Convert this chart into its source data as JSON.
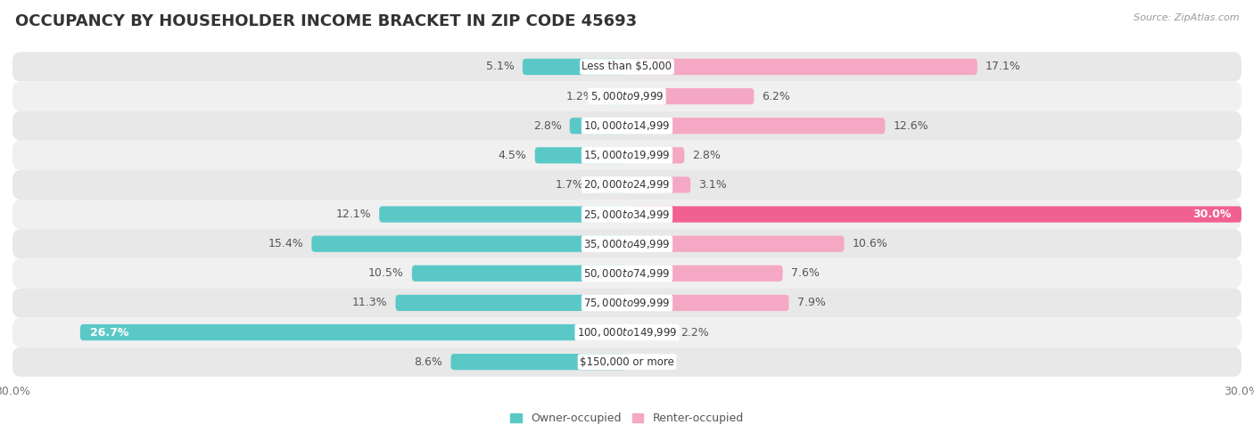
{
  "title": "OCCUPANCY BY HOUSEHOLDER INCOME BRACKET IN ZIP CODE 45693",
  "source": "Source: ZipAtlas.com",
  "categories": [
    "Less than $5,000",
    "$5,000 to $9,999",
    "$10,000 to $14,999",
    "$15,000 to $19,999",
    "$20,000 to $24,999",
    "$25,000 to $34,999",
    "$35,000 to $49,999",
    "$50,000 to $74,999",
    "$75,000 to $99,999",
    "$100,000 to $149,999",
    "$150,000 or more"
  ],
  "owner_values": [
    5.1,
    1.2,
    2.8,
    4.5,
    1.7,
    12.1,
    15.4,
    10.5,
    11.3,
    26.7,
    8.6
  ],
  "renter_values": [
    17.1,
    6.2,
    12.6,
    2.8,
    3.1,
    30.0,
    10.6,
    7.6,
    7.9,
    2.2,
    0.0
  ],
  "owner_color": "#5bc8c8",
  "renter_color_light": "#f4a8c4",
  "renter_color_dark": "#f06090",
  "axis_max": 30.0,
  "bar_height": 0.55,
  "background_color": "#ffffff",
  "row_bg_color": "#ebebeb",
  "row_bg_color2": "#f5f5f5",
  "title_fontsize": 13,
  "label_fontsize": 9,
  "category_fontsize": 8.5,
  "legend_fontsize": 9,
  "source_fontsize": 8
}
